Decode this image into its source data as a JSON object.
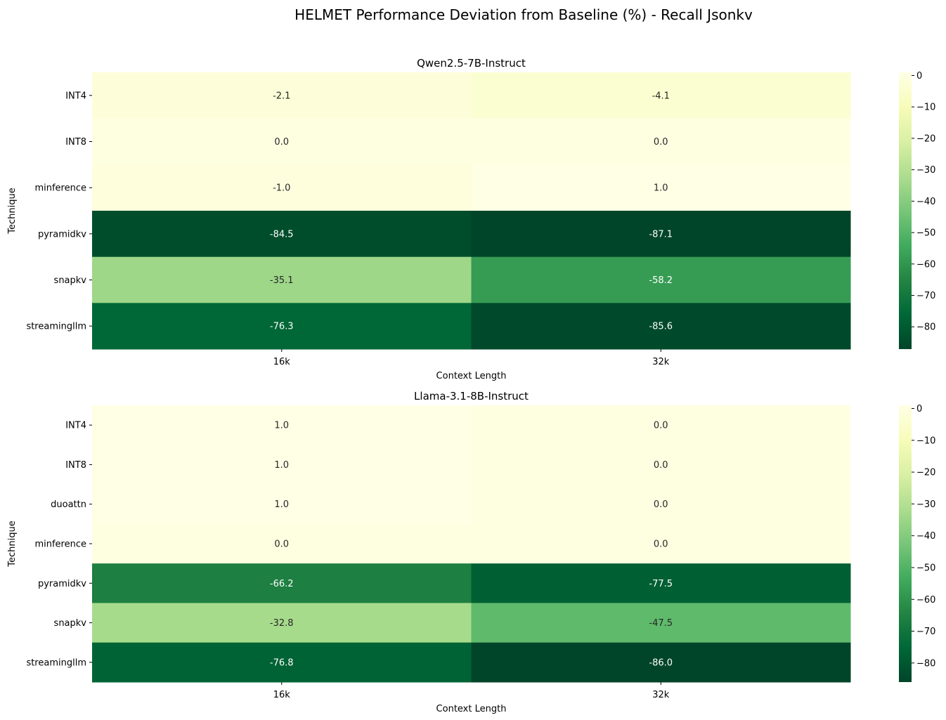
{
  "figure": {
    "title": "HELMET Performance Deviation from Baseline (%) - Recall Jsonkv"
  },
  "colormap": {
    "name": "YlGn_r",
    "stops": [
      "#004529",
      "#006837",
      "#238443",
      "#41ab5d",
      "#78c679",
      "#addd8e",
      "#d9f0a3",
      "#f7fcb9",
      "#ffffe5"
    ]
  },
  "chart_data": [
    {
      "type": "heatmap",
      "title": "Qwen2.5-7B-Instruct",
      "xlabel": "Context Length",
      "ylabel": "Technique",
      "categories": [
        "16k",
        "32k"
      ],
      "rows": [
        "INT4",
        "INT8",
        "minference",
        "pyramidkv",
        "snapkv",
        "streamingllm"
      ],
      "values": [
        [
          -2.1,
          -4.1
        ],
        [
          0.0,
          0.0
        ],
        [
          -1.0,
          1.0
        ],
        [
          -84.5,
          -87.1
        ],
        [
          -35.1,
          -58.2
        ],
        [
          -76.3,
          -85.6
        ]
      ],
      "color_range": [
        -87.1,
        1.0
      ],
      "colorbar_ticks": [
        0,
        -10,
        -20,
        -30,
        -40,
        -50,
        -60,
        -70,
        -80
      ]
    },
    {
      "type": "heatmap",
      "title": "Llama-3.1-8B-Instruct",
      "xlabel": "Context Length",
      "ylabel": "Technique",
      "categories": [
        "16k",
        "32k"
      ],
      "rows": [
        "INT4",
        "INT8",
        "duoattn",
        "minference",
        "pyramidkv",
        "snapkv",
        "streamingllm"
      ],
      "values": [
        [
          1.0,
          0.0
        ],
        [
          1.0,
          0.0
        ],
        [
          1.0,
          0.0
        ],
        [
          0.0,
          0.0
        ],
        [
          -66.2,
          -77.5
        ],
        [
          -32.8,
          -47.5
        ],
        [
          -76.8,
          -86.0
        ]
      ],
      "color_range": [
        -86.0,
        1.0
      ],
      "colorbar_ticks": [
        0,
        -10,
        -20,
        -30,
        -40,
        -50,
        -60,
        -70,
        -80
      ]
    }
  ]
}
